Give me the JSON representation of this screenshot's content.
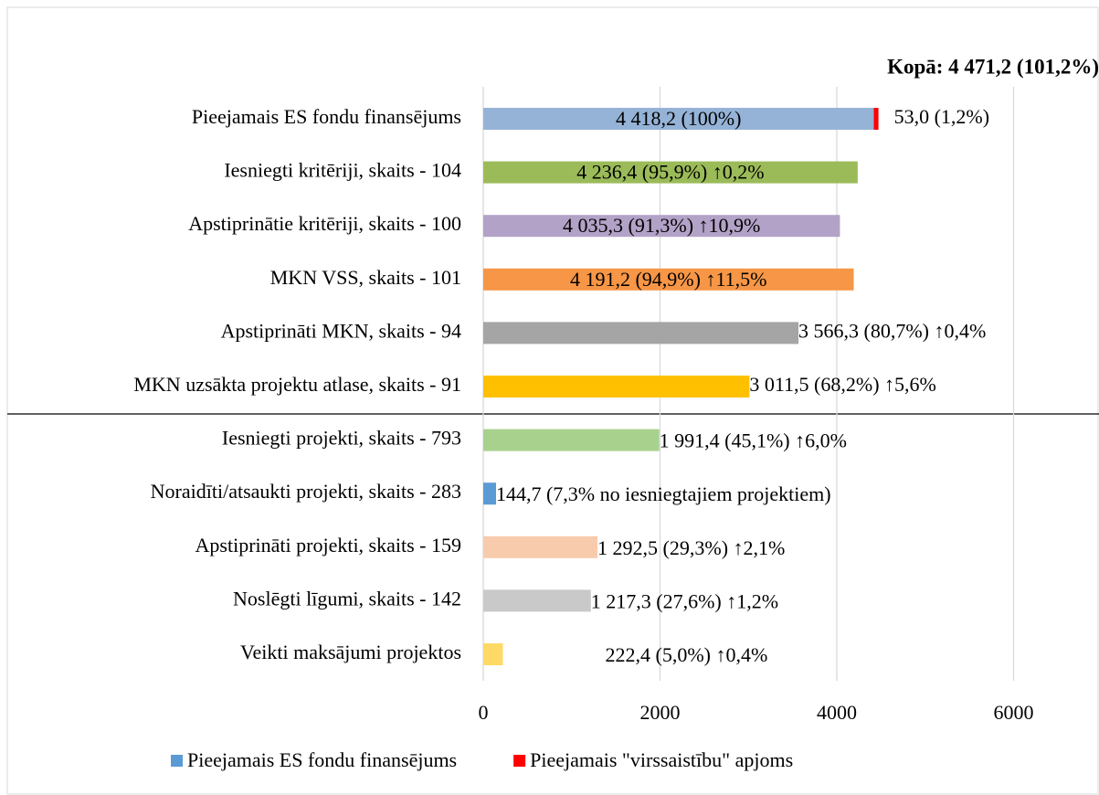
{
  "chart_data": {
    "type": "bar",
    "orientation": "horizontal",
    "annotation": "Kopā: 4 471,2 (101,2%)",
    "categories": [
      "Pieejamais ES fondu finansējums",
      "Iesniegti kritēriji, skaits - 104",
      "Apstiprinātie kritēriji, skaits - 100",
      "MKN VSS, skaits - 101",
      "Apstiprināti MKN, skaits - 94",
      "MKN uzsākta projektu atlase, skaits - 91",
      "Iesniegti projekti, skaits - 793",
      "Noraidīti/atsaukti projekti, skaits - 283",
      "Apstiprināti projekti, skaits - 159",
      "Noslēgti līgumi, skaits - 142",
      "Veikti maksājumi projektos"
    ],
    "series": [
      {
        "name": "Pieejamais ES fondu finansējums",
        "color": "#5b9bd5",
        "colors": [
          "#95b3d7",
          "#9bbb59",
          "#b3a2c7",
          "#f79646",
          "#a5a5a5",
          "#ffc000",
          "#a9d18e",
          "#5b9bd5",
          "#f8cbad",
          "#c9c9c9",
          "#ffd966"
        ],
        "values": [
          4418.2,
          4236.4,
          4035.3,
          4191.2,
          3566.3,
          3011.5,
          1991.4,
          144.7,
          1292.5,
          1217.3,
          222.4
        ],
        "value_labels": [
          "4 418,2 (100%)",
          "4 236,4 (95,9%) ↑0,2%",
          "4 035,3 (91,3%) ↑10,9%",
          "4 191,2 (94,9%) ↑11,5%",
          "3 566,3 (80,7%) ↑0,4%",
          "3 011,5 (68,2%) ↑5,6%",
          "1 991,4 (45,1%) ↑6,0%",
          "144,7 (7,3% no iesniegtajiem projektiem)",
          "1 292,5 (29,3%) ↑2,1%",
          "1 217,3 (27,6%) ↑1,2%",
          "222,4 (5,0%) ↑0,4%"
        ]
      },
      {
        "name": "Pieejamais \"virssaistību\" apjoms",
        "color": "#ff0000",
        "values": [
          53.0,
          null,
          null,
          null,
          null,
          null,
          null,
          null,
          null,
          null,
          null
        ],
        "value_labels": [
          "53,0 (1,2%)",
          null,
          null,
          null,
          null,
          null,
          null,
          null,
          null,
          null,
          null
        ]
      }
    ],
    "xlim": [
      0,
      7000
    ],
    "xticks": [
      0,
      2000,
      4000,
      6000
    ],
    "grid": true,
    "legend": "bottom"
  }
}
